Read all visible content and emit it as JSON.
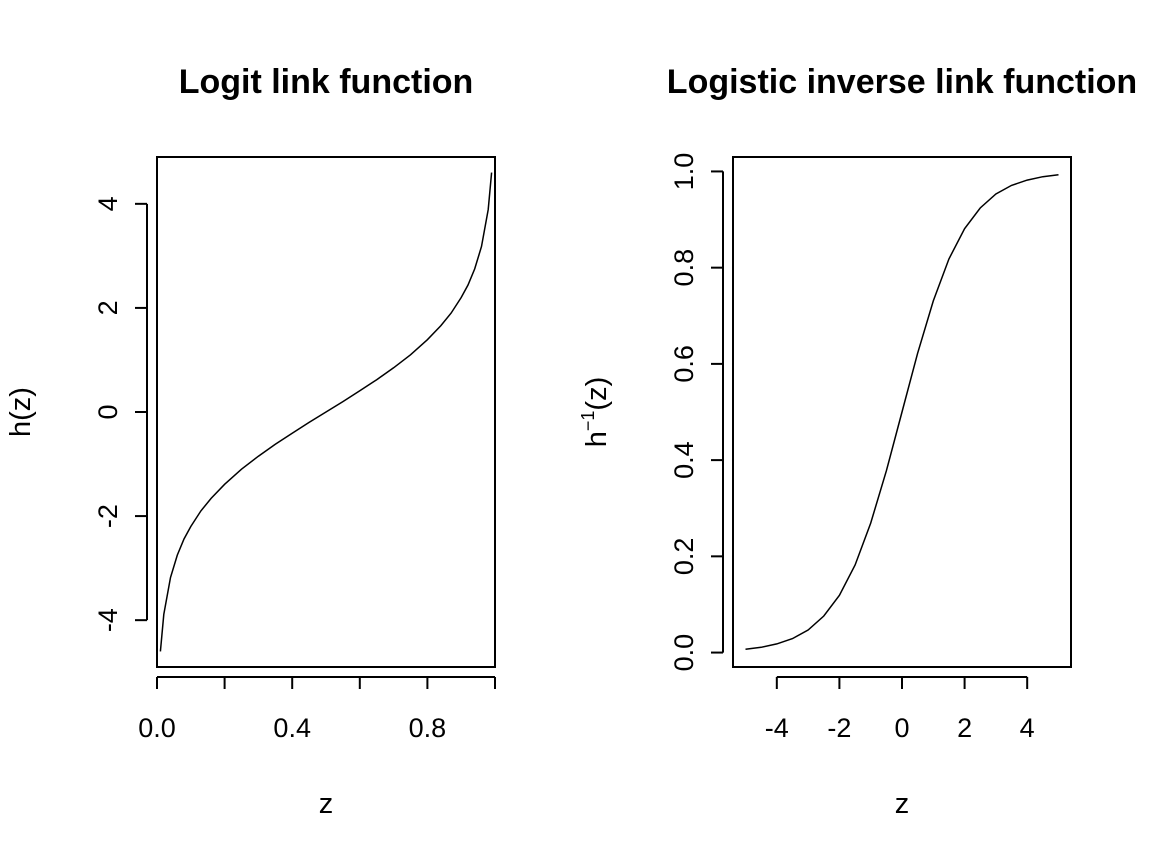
{
  "chart_data": [
    {
      "type": "line",
      "title": "Logit link function",
      "xlabel": "z",
      "ylabel": "h(z)",
      "xlim": [
        0.0,
        1.0
      ],
      "ylim": [
        -4.9,
        4.9
      ],
      "xticks": [
        0.0,
        0.2,
        0.4,
        0.6,
        0.8,
        1.0
      ],
      "xtick_labels": [
        "0.0",
        "",
        "0.4",
        "",
        "0.8",
        ""
      ],
      "yticks": [
        -4,
        -2,
        0,
        2,
        4
      ],
      "ytick_labels": [
        "-4",
        "-2",
        "0",
        "2",
        "4"
      ],
      "grid": false,
      "line_color": "#000000",
      "series": [
        {
          "x": [
            0.01,
            0.02,
            0.04,
            0.06,
            0.08,
            0.1,
            0.13,
            0.16,
            0.2,
            0.25,
            0.3,
            0.35,
            0.4,
            0.45,
            0.5,
            0.55,
            0.6,
            0.65,
            0.7,
            0.75,
            0.8,
            0.84,
            0.87,
            0.9,
            0.92,
            0.94,
            0.96,
            0.98,
            0.99
          ],
          "y": [
            -4.6,
            -3.89,
            -3.18,
            -2.75,
            -2.44,
            -2.2,
            -1.9,
            -1.66,
            -1.39,
            -1.1,
            -0.85,
            -0.62,
            -0.41,
            -0.2,
            0.0,
            0.2,
            0.41,
            0.62,
            0.85,
            1.1,
            1.39,
            1.66,
            1.9,
            2.2,
            2.44,
            2.75,
            3.18,
            3.89,
            4.6
          ]
        }
      ]
    },
    {
      "type": "line",
      "title": "Logistic inverse link function",
      "xlabel": "z",
      "ylabel": "h",
      "ylabel_superscript": "−1",
      "ylabel_suffix": "(z)",
      "xlim": [
        -5.4,
        5.4
      ],
      "ylim": [
        -0.03,
        1.03
      ],
      "xticks": [
        -4,
        -2,
        0,
        2,
        4
      ],
      "xtick_labels": [
        "-4",
        "-2",
        "0",
        "2",
        "4"
      ],
      "yticks": [
        0.0,
        0.2,
        0.4,
        0.6,
        0.8,
        1.0
      ],
      "ytick_labels": [
        "0.0",
        "0.2",
        "0.4",
        "0.6",
        "0.8",
        "1.0"
      ],
      "grid": false,
      "line_color": "#000000",
      "series": [
        {
          "x": [
            -5,
            -4.5,
            -4,
            -3.5,
            -3,
            -2.5,
            -2,
            -1.5,
            -1,
            -0.5,
            0,
            0.5,
            1,
            1.5,
            2,
            2.5,
            3,
            3.5,
            4,
            4.5,
            5
          ],
          "y": [
            0.007,
            0.011,
            0.018,
            0.029,
            0.047,
            0.076,
            0.119,
            0.182,
            0.269,
            0.378,
            0.5,
            0.622,
            0.731,
            0.818,
            0.881,
            0.924,
            0.953,
            0.971,
            0.982,
            0.989,
            0.993
          ]
        }
      ]
    }
  ]
}
